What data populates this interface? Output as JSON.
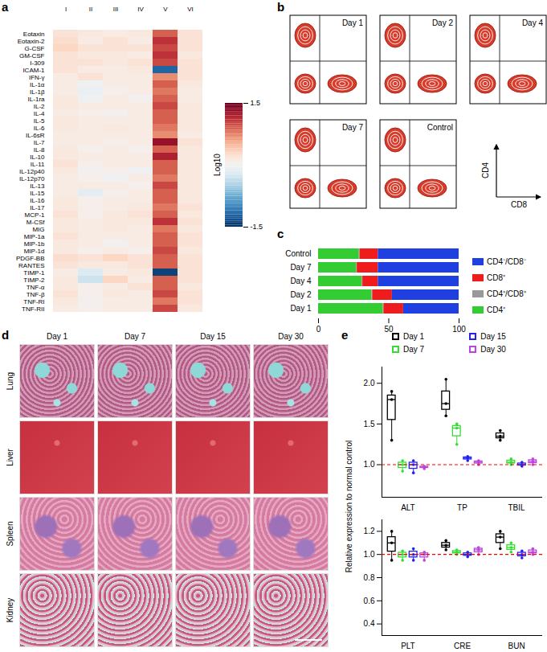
{
  "chart_data": [
    {
      "panel": "a",
      "type": "heatmap",
      "x": [
        "I",
        "II",
        "III",
        "IV",
        "V",
        "VI"
      ],
      "y": [
        "Eotaxin",
        "Eotaxin-2",
        "G-CSF",
        "GM-CSF",
        "I-309",
        "ICAM-1",
        "IFN-γ",
        "IL-1α",
        "IL-1β",
        "IL-1ra",
        "IL-2",
        "IL-4",
        "IL-5",
        "IL-6",
        "IL-6sR",
        "IL-7",
        "IL-8",
        "IL-10",
        "IL-11",
        "IL-12p40",
        "IL-12p70",
        "IL-13",
        "IL-15",
        "IL-16",
        "IL-17",
        "MCP-1",
        "M-CSf",
        "MIG",
        "MIP-1a",
        "MIP-1b",
        "MIP-1d",
        "PDGF-BB",
        "RANTES",
        "TIMP-1",
        "TIMP-2",
        "TNF-α",
        "TNF-β",
        "TNF-RI",
        "TNF-RII"
      ],
      "cells": [
        [
          0.2,
          0.15,
          0.1,
          0.15,
          0.9,
          0.2
        ],
        [
          0.25,
          0.1,
          0.2,
          0.1,
          1.1,
          0.2
        ],
        [
          0.3,
          0.2,
          0.2,
          0.2,
          1.0,
          0.2
        ],
        [
          0.2,
          0.15,
          0.15,
          0.1,
          1.1,
          0.15
        ],
        [
          0.2,
          0.2,
          0.15,
          0.2,
          1.0,
          0.2
        ],
        [
          0.2,
          0.1,
          0.1,
          0.15,
          -1.2,
          0.2
        ],
        [
          0.1,
          0.2,
          0.1,
          0.1,
          0.7,
          0.2
        ],
        [
          0.1,
          -0.05,
          0.1,
          0.1,
          0.9,
          0.15
        ],
        [
          0.1,
          -0.1,
          0.05,
          0.1,
          0.8,
          0.1
        ],
        [
          0.15,
          -0.05,
          0.1,
          0.0,
          0.9,
          0.1
        ],
        [
          0.15,
          0.1,
          0.1,
          0.1,
          1.0,
          0.15
        ],
        [
          0.1,
          0.05,
          0.0,
          0.1,
          0.9,
          0.15
        ],
        [
          0.15,
          0.1,
          0.1,
          0.1,
          0.9,
          0.15
        ],
        [
          0.15,
          0.1,
          0.15,
          0.1,
          0.8,
          0.15
        ],
        [
          0.1,
          0.1,
          0.1,
          0.1,
          0.7,
          0.1
        ],
        [
          0.1,
          0.1,
          0.05,
          0.1,
          1.3,
          0.2
        ],
        [
          0.15,
          0.05,
          0.1,
          0.05,
          0.9,
          0.15
        ],
        [
          0.15,
          0.1,
          0.1,
          0.1,
          1.2,
          0.15
        ],
        [
          0.2,
          0.05,
          0.1,
          0.1,
          0.9,
          0.15
        ],
        [
          0.15,
          0.0,
          0.05,
          -0.05,
          0.9,
          0.15
        ],
        [
          0.1,
          0.05,
          -0.05,
          0.1,
          0.8,
          0.15
        ],
        [
          0.1,
          0.1,
          0.1,
          0.05,
          1.0,
          0.15
        ],
        [
          0.1,
          -0.15,
          0.05,
          0.1,
          0.9,
          0.15
        ],
        [
          0.15,
          0.05,
          0.1,
          0.1,
          0.9,
          0.15
        ],
        [
          0.15,
          0.05,
          0.1,
          0.15,
          0.8,
          0.2
        ],
        [
          0.2,
          0.05,
          0.15,
          0.2,
          0.9,
          0.15
        ],
        [
          0.15,
          0.1,
          0.15,
          0.15,
          1.1,
          0.2
        ],
        [
          0.15,
          0.1,
          0.15,
          0.1,
          0.8,
          0.15
        ],
        [
          0.2,
          0.1,
          0.1,
          0.1,
          0.9,
          0.2
        ],
        [
          0.15,
          0.1,
          0.0,
          0.1,
          0.9,
          0.2
        ],
        [
          0.15,
          0.05,
          0.1,
          0.05,
          1.0,
          0.15
        ],
        [
          0.25,
          0.2,
          0.3,
          0.2,
          0.9,
          0.2
        ],
        [
          0.2,
          0.15,
          0.15,
          0.2,
          0.9,
          0.2
        ],
        [
          0.1,
          -0.2,
          0.1,
          0.15,
          -1.4,
          0.2
        ],
        [
          0.15,
          -0.3,
          0.3,
          0.1,
          0.9,
          0.2
        ],
        [
          0.15,
          0.05,
          0.1,
          0.2,
          0.9,
          0.15
        ],
        [
          0.2,
          0.05,
          0.15,
          0.1,
          1.0,
          0.2
        ],
        [
          0.15,
          0.0,
          0.1,
          0.1,
          0.8,
          0.2
        ],
        [
          0.1,
          0.05,
          0.1,
          0.1,
          1.0,
          0.15
        ]
      ],
      "colorbar": {
        "label": "Log10",
        "range": [
          -1.5,
          1.5
        ],
        "ticks": [
          -1.5,
          1.5
        ]
      }
    },
    {
      "panel": "c",
      "type": "bar",
      "orientation": "horizontal",
      "stacked": true,
      "legend": "right",
      "categories": [
        "Control",
        "Day 7",
        "Day 4",
        "Day 2",
        "Day 1"
      ],
      "series": [
        {
          "name": "CD4⁺",
          "color": "#33cc33",
          "values": [
            29,
            27,
            31,
            38,
            46
          ]
        },
        {
          "name": "CD4⁺/CD8⁺",
          "color": "#999999",
          "values": [
            0.5,
            0.5,
            0.5,
            0.5,
            0.5
          ]
        },
        {
          "name": "CD8⁺",
          "color": "#ee1c1c",
          "values": [
            13,
            15,
            11,
            14,
            14
          ]
        },
        {
          "name": "CD4⁻/CD8⁻",
          "color": "#1f3fe0",
          "values": [
            57.5,
            57.5,
            57.5,
            47.5,
            39.5
          ]
        }
      ],
      "xlim": [
        0,
        100
      ],
      "xticks": [
        0,
        50,
        100
      ]
    },
    {
      "panel": "e",
      "type": "box",
      "legend": "top",
      "ylabel": "Relative expression to normal control",
      "categories": [
        "ALT",
        "TP",
        "TBIL"
      ],
      "series": [
        {
          "name": "Day 1",
          "color": "#000000",
          "values": [
            [
              1.3,
              1.8,
              1.9
            ],
            [
              1.6,
              1.75,
              2.05
            ],
            [
              1.3,
              1.35,
              1.42
            ]
          ]
        },
        {
          "name": "Day 7",
          "color": "#33dd33",
          "values": [
            [
              0.92,
              1.0,
              1.05
            ],
            [
              1.25,
              1.45,
              1.5
            ],
            [
              1.0,
              1.03,
              1.07
            ]
          ]
        },
        {
          "name": "Day 15",
          "color": "#2222ee",
          "values": [
            [
              0.9,
              1.0,
              1.05
            ],
            [
              1.05,
              1.08,
              1.1
            ],
            [
              0.98,
              1.0,
              1.03
            ]
          ]
        },
        {
          "name": "Day 30",
          "color": "#bb44dd",
          "values": [
            [
              0.95,
              0.97,
              0.98
            ],
            [
              1.0,
              1.03,
              1.05
            ],
            [
              1.0,
              1.04,
              1.07
            ]
          ]
        }
      ],
      "reference": 1,
      "ylim": [
        0.6,
        2.2
      ],
      "yticks": [
        {
          "value": 1,
          "label": "1.0"
        },
        1.5,
        {
          "value": 2,
          "label": "2.0"
        }
      ]
    },
    {
      "type": "box",
      "categories": [
        "PLT",
        "CRE",
        "BUN"
      ],
      "series": [
        {
          "name": "Day 1",
          "color": "#000000",
          "values": [
            [
              0.95,
              1.1,
              1.2
            ],
            [
              1.04,
              1.08,
              1.12
            ],
            [
              1.05,
              1.15,
              1.2
            ]
          ]
        },
        {
          "name": "Day 7",
          "color": "#33dd33",
          "values": [
            [
              0.95,
              1.0,
              1.03
            ],
            [
              1.0,
              1.02,
              1.04
            ],
            [
              1.02,
              1.06,
              1.1
            ]
          ]
        },
        {
          "name": "Day 15",
          "color": "#2222ee",
          "values": [
            [
              0.95,
              1.0,
              1.05
            ],
            [
              0.98,
              1.0,
              1.02
            ],
            [
              0.97,
              1.0,
              1.03
            ]
          ]
        },
        {
          "name": "Day 30",
          "color": "#bb44dd",
          "values": [
            [
              0.95,
              1.0,
              1.02
            ],
            [
              1.0,
              1.04,
              1.06
            ],
            [
              1.0,
              1.02,
              1.05
            ]
          ]
        }
      ],
      "reference": 1,
      "ylim": [
        0.3,
        1.3
      ],
      "yticks": [
        0.4,
        0.6,
        0.8,
        {
          "value": 1,
          "label": "1.0"
        },
        1.2
      ]
    }
  ],
  "flow": {
    "panel": "b",
    "plots": [
      "Day 1",
      "Day 2",
      "Day 4",
      "Day 7",
      "Control"
    ],
    "y_label": "CD4",
    "x_label": "CD8"
  },
  "histology": {
    "panel": "d",
    "columns": [
      "Day 1",
      "Day 7",
      "Day 15",
      "Day 30"
    ],
    "rows": [
      "Lung",
      "Liver",
      "Spleen",
      "Kidney"
    ]
  }
}
